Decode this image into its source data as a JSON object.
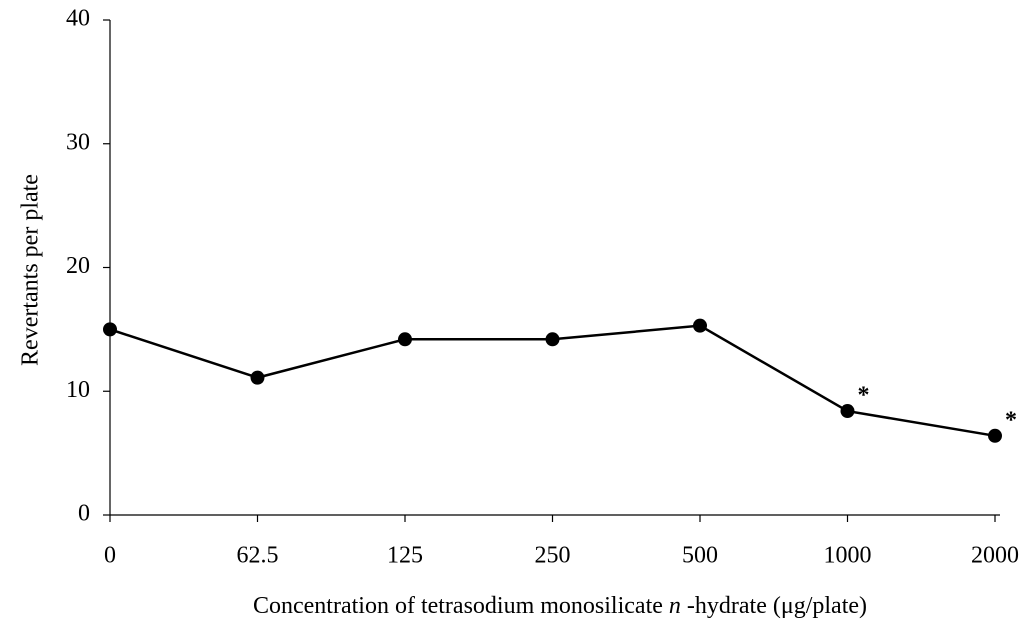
{
  "chart_data": {
    "type": "line",
    "y_label": "Revertants per plate",
    "x_label_parts": [
      "Concentration of tetrasodium monosilicate ",
      "n",
      " -hydrate  (μg/plate)"
    ],
    "categories": [
      "0",
      "62.5",
      "125",
      "250",
      "500",
      "1000",
      "2000"
    ],
    "series": [
      {
        "color": "#000000",
        "values": [
          15,
          11.1,
          14.2,
          14.2,
          15.3,
          8.4,
          6.4
        ]
      }
    ],
    "ylim": [
      0,
      40
    ],
    "yticks": [
      0,
      10,
      20,
      30,
      40
    ],
    "annotations": [
      {
        "category": "1000",
        "text": "*"
      },
      {
        "category": "2000",
        "text": "*"
      }
    ]
  }
}
